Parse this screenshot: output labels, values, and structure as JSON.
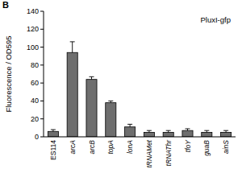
{
  "chart_data": {
    "type": "bar",
    "title": "B",
    "y_label": "Fluorescence / OD595",
    "annotations": [
      "PluxI-gfp"
    ],
    "categories": [
      "ES114",
      "arcA",
      "arcB",
      "topA",
      "lonA",
      "tRNAMet",
      "tRNAThr",
      "tfoY",
      "guaB",
      "ainS"
    ],
    "values": [
      6,
      94,
      64,
      38,
      11,
      5,
      5,
      7,
      5,
      5
    ],
    "errors": [
      2,
      12,
      3,
      2,
      3,
      2,
      2,
      2,
      2,
      2
    ],
    "color": "#6e6e6e",
    "ylim": [
      0,
      140
    ],
    "yticks": [
      0,
      20,
      40,
      60,
      80,
      100,
      120,
      140
    ],
    "grid": false
  }
}
